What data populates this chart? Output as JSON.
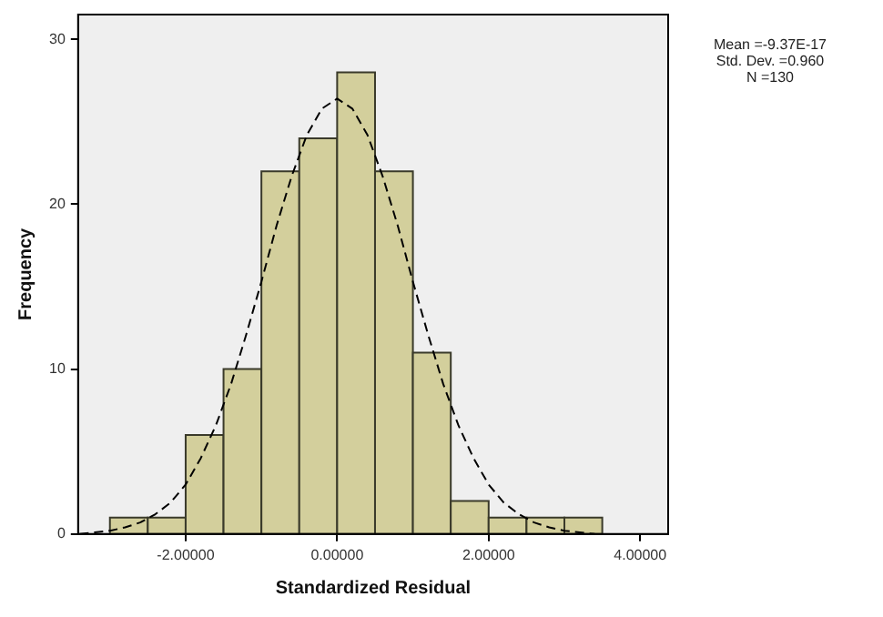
{
  "chart_data": {
    "type": "histogram",
    "xlabel": "Standardized Residual",
    "ylabel": "Frequency",
    "bins": [
      -3,
      -2.5,
      -2,
      -1.5,
      -1,
      -0.5,
      0,
      0.5,
      1,
      1.5,
      2,
      2.5,
      3,
      3.5
    ],
    "values": [
      1,
      1,
      6,
      10,
      22,
      24,
      28,
      22,
      11,
      2,
      1,
      1,
      1
    ],
    "color": "#d3cf9c",
    "series": [
      {
        "type": "line",
        "color": "#000000",
        "line_style": "dashed",
        "marker": "none",
        "x": [
          -3.4,
          -3.2,
          -3,
          -2.8,
          -2.6,
          -2.4,
          -2.2,
          -2,
          -1.8,
          -1.6,
          -1.4,
          -1.2,
          -1,
          -0.8,
          -0.6,
          -0.4,
          -0.2,
          0,
          0.2,
          0.4,
          0.6,
          0.8,
          1,
          1.2,
          1.4,
          1.6,
          1.8,
          2,
          2.2,
          2.4,
          2.6,
          2.8,
          3,
          3.2,
          3.4
        ],
        "values": [
          0,
          0.1,
          0.2,
          0.4,
          0.7,
          1.2,
          1.9,
          3,
          4.6,
          6.6,
          9.1,
          12.1,
          15.3,
          18.7,
          21.7,
          24.2,
          25.8,
          26.4,
          25.8,
          24.2,
          21.7,
          18.7,
          15.3,
          12.1,
          9.1,
          6.6,
          4.6,
          3,
          1.9,
          1.2,
          0.7,
          0.4,
          0.2,
          0.1,
          0
        ]
      }
    ],
    "xlim": [
      -3.42,
      4.37
    ],
    "xticks": [
      {
        "value": -2,
        "label": "-2.00000"
      },
      {
        "value": 0,
        "label": "0.00000"
      },
      {
        "value": 2,
        "label": "2.00000"
      },
      {
        "value": 4,
        "label": "4.00000"
      }
    ],
    "ylim": [
      0,
      31.5
    ],
    "yticks": [
      0,
      10,
      20,
      30
    ],
    "grid": false,
    "legend": false,
    "annotations": [
      "Mean =-9.37E-17",
      "Std. Dev. =0.960",
      "N =130"
    ]
  }
}
